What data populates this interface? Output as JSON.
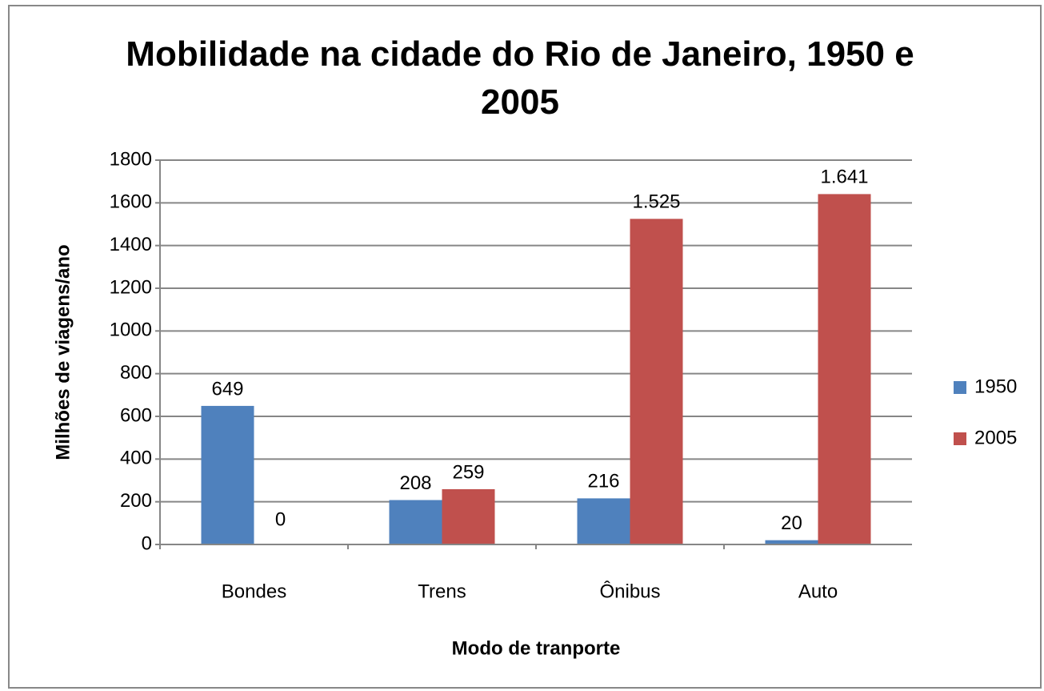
{
  "chart_data": {
    "type": "bar",
    "title": "Mobilidade na cidade do Rio de Janeiro, 1950 e 2005",
    "x_label": "Modo de tranporte",
    "y_label": "Milhões de viagens/ano",
    "categories": [
      "Bondes",
      "Trens",
      "Ônibus",
      "Auto"
    ],
    "series": [
      {
        "name": "1950",
        "color": "#4f81bd",
        "values": [
          649,
          208,
          216,
          20
        ],
        "value_labels": [
          "649",
          "208",
          "216",
          "20"
        ]
      },
      {
        "name": "2005",
        "color": "#c0504d",
        "values": [
          0,
          259,
          1525,
          1641
        ],
        "value_labels": [
          "0",
          "259",
          "1.525",
          "1.641"
        ]
      }
    ],
    "ylim": [
      0,
      1800
    ],
    "yticks": [
      0,
      200,
      400,
      600,
      800,
      1000,
      1200,
      1400,
      1600,
      1800
    ],
    "grid": true,
    "legend": "right"
  }
}
